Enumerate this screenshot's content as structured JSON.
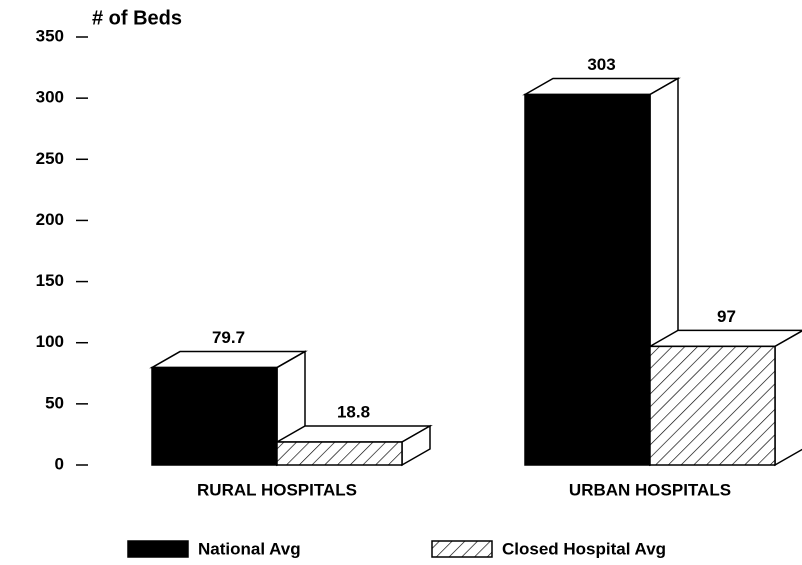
{
  "chart_data": {
    "type": "bar3d",
    "ylabel": "# of Beds",
    "categories": [
      "RURAL HOSPITALS",
      "URBAN HOSPITALS"
    ],
    "series": [
      {
        "name": "National Avg",
        "color": "#000000",
        "hatch": false,
        "values": [
          79.7,
          303
        ]
      },
      {
        "name": "Closed Hospital Avg",
        "color": "#ffffff",
        "hatch": true,
        "values": [
          18.8,
          97
        ]
      }
    ],
    "ylim": [
      0,
      350
    ],
    "yticks": [
      0,
      50,
      100,
      150,
      200,
      250,
      300,
      350
    ]
  }
}
